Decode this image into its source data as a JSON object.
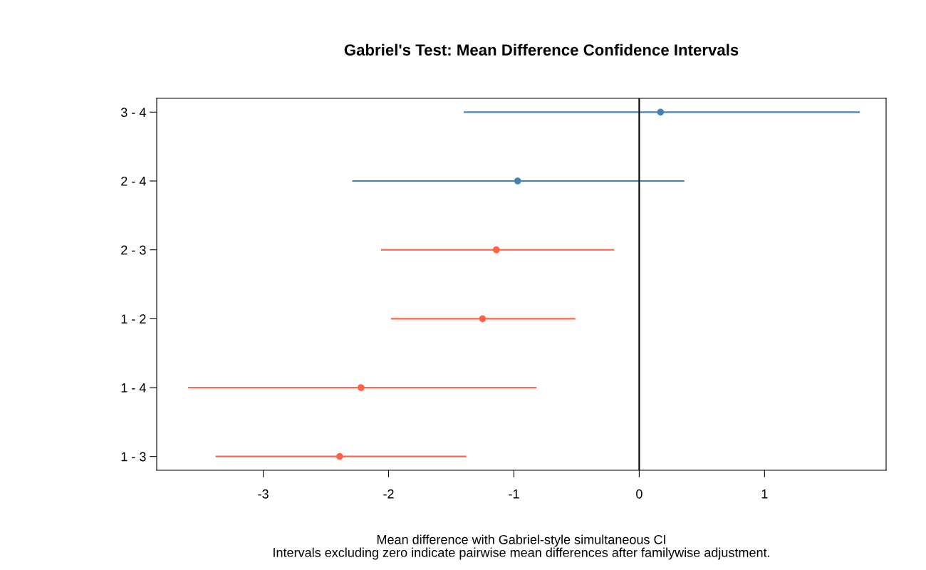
{
  "chart_data": {
    "type": "scatter",
    "orientation": "horizontal",
    "title": "Gabriel's Test: Mean Difference Confidence Intervals",
    "xlabel": "Mean difference with Gabriel-style simultaneous CI",
    "annotations": [
      "Intervals excluding zero indicate pairwise mean differences after familywise adjustment."
    ],
    "categories": [
      "3 - 4",
      "2 - 4",
      "2 - 3",
      "1 - 2",
      "1 - 4",
      "1 - 3"
    ],
    "values": [
      0.17,
      -0.97,
      -1.14,
      -1.25,
      -2.22,
      -2.39
    ],
    "errors": [
      [
        -1.4,
        1.76
      ],
      [
        -2.29,
        0.36
      ],
      [
        -2.06,
        -0.2
      ],
      [
        -1.98,
        -0.51
      ],
      [
        -3.6,
        -0.82
      ],
      [
        -3.38,
        -1.38
      ]
    ],
    "colors": [
      "#4682b4",
      "#4682b4",
      "#ff6347",
      "#ff6347",
      "#ff6347",
      "#ff6347"
    ],
    "xlim": [
      -3.85,
      1.97
    ],
    "xticks": [
      -3,
      -2,
      -1,
      0,
      1
    ],
    "ref_lines": [
      {
        "axis": "x",
        "value": 0,
        "color": "#000000"
      }
    ],
    "marker": "circle",
    "grid": false
  }
}
